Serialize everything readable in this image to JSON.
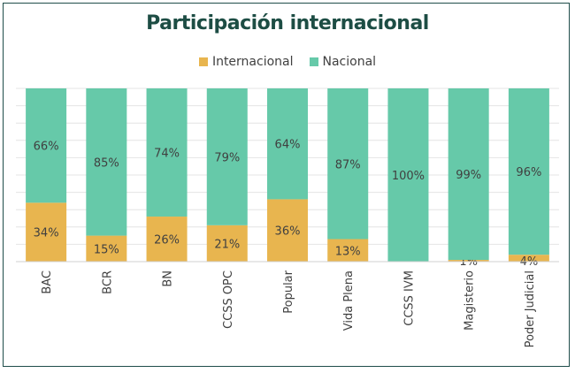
{
  "chart_data": {
    "type": "bar",
    "stacked": true,
    "title": "Participación internacional",
    "categories": [
      "BAC",
      "BCR",
      "BN",
      "CCSS OPC",
      "Popular",
      "Vida Plena",
      "CCSS IVM",
      "Magisterio",
      "Poder Judicial"
    ],
    "series": [
      {
        "name": "Internacional",
        "color": "#e8b54f",
        "values": [
          34,
          15,
          26,
          21,
          36,
          13,
          0,
          1,
          4
        ],
        "labels": [
          "34%",
          "15%",
          "26%",
          "21%",
          "36%",
          "13%",
          "",
          "1%",
          "4%"
        ]
      },
      {
        "name": "Nacional",
        "color": "#66c9a9",
        "values": [
          66,
          85,
          74,
          79,
          64,
          87,
          100,
          99,
          96
        ],
        "labels": [
          "66%",
          "85%",
          "74%",
          "79%",
          "64%",
          "87%",
          "100%",
          "99%",
          "96%"
        ]
      }
    ],
    "ylim": [
      0,
      100
    ],
    "legend_position": "top",
    "grid": true
  }
}
